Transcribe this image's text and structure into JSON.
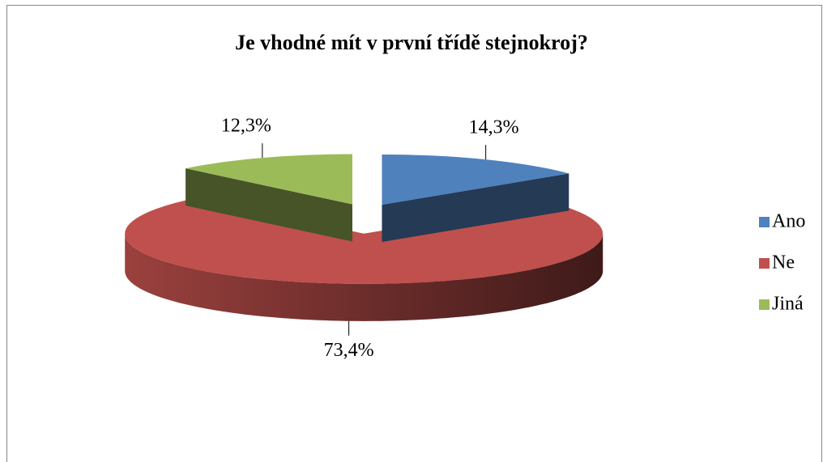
{
  "chart_data": {
    "type": "pie3d",
    "title": "Je vhodné mít v první třídě stejnokroj?",
    "categories": [
      "Ano",
      "Ne",
      "Jiná"
    ],
    "values": [
      14.3,
      73.4,
      12.3
    ],
    "value_labels": [
      "14,3%",
      "73,4%",
      "12,3%"
    ],
    "colors": [
      "#4f81bd",
      "#c0504d",
      "#9bbb59"
    ],
    "legend": "right"
  }
}
